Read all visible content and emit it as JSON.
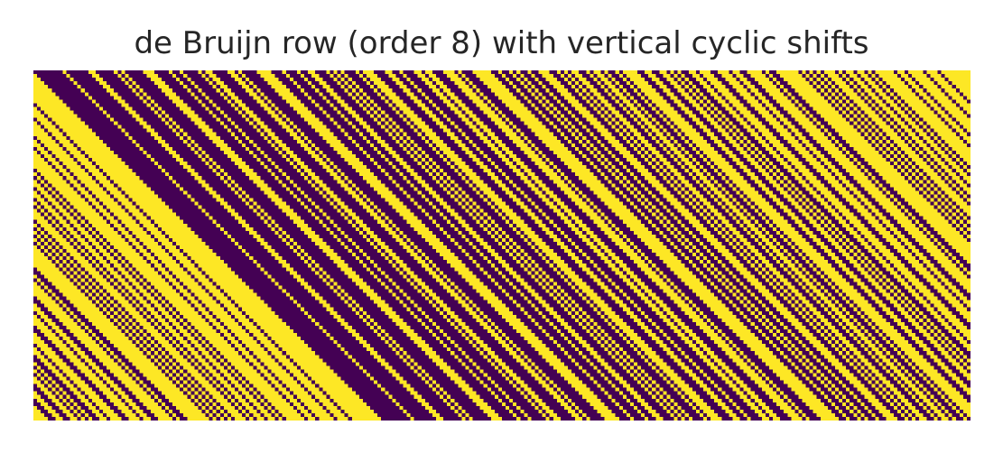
{
  "chart_data": {
    "type": "heatmap",
    "title": "de Bruijn row (order 8) with vertical cyclic shifts",
    "xlabel": "",
    "ylabel": "",
    "sequence": {
      "kind": "de Bruijn",
      "alphabet": 2,
      "order": 8,
      "length": 256
    },
    "shift_per_row": 1,
    "columns": 256,
    "rows": 96,
    "values": [
      0,
      1
    ],
    "colors": {
      "0": "#440154",
      "1": "#fde725"
    },
    "axes_visible": false,
    "grid": false,
    "colorbar": false
  }
}
